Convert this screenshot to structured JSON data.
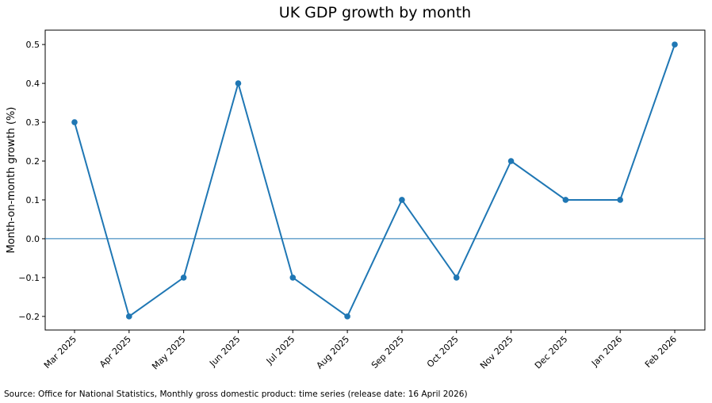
{
  "chart_data": {
    "type": "line",
    "title": "UK GDP growth by month",
    "xlabel": "",
    "ylabel": "Month-on-month growth (%)",
    "categories": [
      "Mar 2025",
      "Apr 2025",
      "May 2025",
      "Jun 2025",
      "Jul 2025",
      "Aug 2025",
      "Sep 2025",
      "Oct 2025",
      "Nov 2025",
      "Dec 2025",
      "Jan 2026",
      "Feb 2026"
    ],
    "values": [
      0.3,
      -0.2,
      -0.1,
      0.4,
      -0.1,
      -0.2,
      0.1,
      -0.1,
      0.2,
      0.1,
      0.1,
      0.5
    ],
    "ylim": [
      -0.235,
      0.537
    ],
    "yticks": [
      -0.2,
      -0.1,
      0.0,
      0.1,
      0.2,
      0.3,
      0.4,
      0.5
    ],
    "ytick_labels": [
      "−0.2",
      "−0.1",
      "0.0",
      "0.1",
      "0.2",
      "0.3",
      "0.4",
      "0.5"
    ],
    "zero_line": true,
    "grid": false,
    "legend": "none",
    "color": "#1f77b4"
  },
  "footer": {
    "source": "Source: Office for National Statistics, Monthly gross domestic product: time series (release date: 16 April 2026)"
  }
}
